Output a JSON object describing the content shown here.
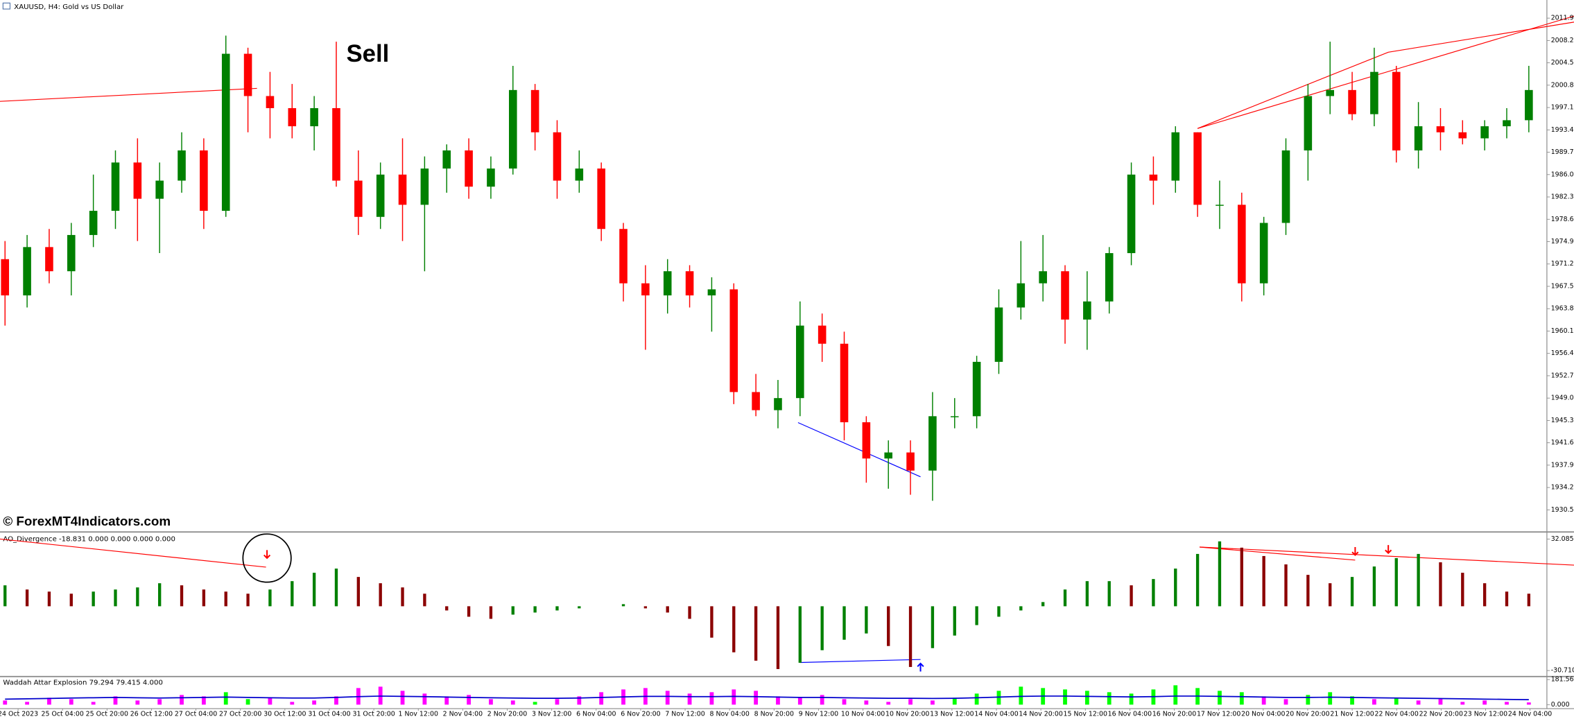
{
  "header": {
    "title": "XAUUSD, H4: Gold vs US Dollar"
  },
  "annotations": {
    "sell": "Sell",
    "watermark": "© ForexMT4Indicators.com"
  },
  "price_chart": {
    "type": "candlestick",
    "ylim": [
      1927.0,
      2014.9
    ],
    "up_color": "#008000",
    "down_color": "#ff0000",
    "yticks": [
      {
        "value": 2011.9,
        "label": "2011.90"
      },
      {
        "value": 2008.2,
        "label": "2008.20"
      },
      {
        "value": 2004.5,
        "label": "2004.50"
      },
      {
        "value": 2000.8,
        "label": "2000.80"
      },
      {
        "value": 1997.1,
        "label": "1997.10"
      },
      {
        "value": 1993.4,
        "label": "1993.40"
      },
      {
        "value": 1989.7,
        "label": "1989.70"
      },
      {
        "value": 1986,
        "label": "1986.00"
      },
      {
        "value": 1982.3,
        "label": "1982.30"
      },
      {
        "value": 1978.6,
        "label": "1978.60"
      },
      {
        "value": 1974.9,
        "label": "1974.90"
      },
      {
        "value": 1971.2,
        "label": "1971.20"
      },
      {
        "value": 1967.5,
        "label": "1967.50"
      },
      {
        "value": 1963.8,
        "label": "1963.80"
      },
      {
        "value": 1960.1,
        "label": "1960.10"
      },
      {
        "value": 1956.4,
        "label": "1956.40"
      },
      {
        "value": 1952.7,
        "label": "1952.70"
      },
      {
        "value": 1949,
        "label": "1949.00"
      },
      {
        "value": 1945.3,
        "label": "1945.30"
      },
      {
        "value": 1941.6,
        "label": "1941.60"
      },
      {
        "value": 1937.9,
        "label": "1937.90"
      },
      {
        "value": 1934.2,
        "label": "1934.20"
      },
      {
        "value": 1930.5,
        "label": "1930.50"
      }
    ],
    "candles": [
      [
        1972,
        1975,
        1961,
        1966
      ],
      [
        1966,
        1976,
        1964,
        1974
      ],
      [
        1974,
        1977,
        1968,
        1970
      ],
      [
        1970,
        1978,
        1966,
        1976
      ],
      [
        1976,
        1986,
        1974,
        1980
      ],
      [
        1980,
        1990,
        1977,
        1988
      ],
      [
        1988,
        1992,
        1975,
        1982
      ],
      [
        1982,
        1988,
        1973,
        1985
      ],
      [
        1985,
        1993,
        1983,
        1990
      ],
      [
        1990,
        1992,
        1977,
        1980
      ],
      [
        1980,
        2009,
        1979,
        2006
      ],
      [
        2006,
        2007,
        1993,
        1999
      ],
      [
        1999,
        2003,
        1992,
        1997
      ],
      [
        1997,
        2001,
        1992,
        1994
      ],
      [
        1994,
        1999,
        1990,
        1997
      ],
      [
        1997,
        2008,
        1984,
        1985
      ],
      [
        1985,
        1990,
        1976,
        1979
      ],
      [
        1979,
        1988,
        1977,
        1986
      ],
      [
        1986,
        1992,
        1975,
        1981
      ],
      [
        1981,
        1989,
        1970,
        1987
      ],
      [
        1987,
        1991,
        1983,
        1990
      ],
      [
        1990,
        1992,
        1982,
        1984
      ],
      [
        1984,
        1989,
        1982,
        1987
      ],
      [
        1987,
        2004,
        1986,
        2000
      ],
      [
        2000,
        2001,
        1990,
        1993
      ],
      [
        1993,
        1995,
        1982,
        1985
      ],
      [
        1985,
        1990,
        1983,
        1987
      ],
      [
        1987,
        1988,
        1975,
        1977
      ],
      [
        1977,
        1978,
        1965,
        1968
      ],
      [
        1968,
        1971,
        1957,
        1966
      ],
      [
        1966,
        1972,
        1963,
        1970
      ],
      [
        1970,
        1971,
        1964,
        1966
      ],
      [
        1966,
        1969,
        1960,
        1967
      ],
      [
        1967,
        1968,
        1948,
        1950
      ],
      [
        1950,
        1953,
        1946,
        1947
      ],
      [
        1947,
        1952,
        1944,
        1949
      ],
      [
        1949,
        1965,
        1946,
        1961
      ],
      [
        1961,
        1963,
        1955,
        1958
      ],
      [
        1958,
        1960,
        1942,
        1945
      ],
      [
        1945,
        1946,
        1935,
        1939
      ],
      [
        1939,
        1942,
        1934,
        1940
      ],
      [
        1940,
        1942,
        1933,
        1937
      ],
      [
        1937,
        1950,
        1932,
        1946
      ],
      [
        1946,
        1949,
        1944,
        1946
      ],
      [
        1946,
        1956,
        1944,
        1955
      ],
      [
        1955,
        1967,
        1953,
        1964
      ],
      [
        1964,
        1975,
        1962,
        1968
      ],
      [
        1968,
        1976,
        1965,
        1970
      ],
      [
        1970,
        1971,
        1958,
        1962
      ],
      [
        1962,
        1970,
        1957,
        1965
      ],
      [
        1965,
        1974,
        1963,
        1973
      ],
      [
        1973,
        1988,
        1971,
        1986
      ],
      [
        1986,
        1989,
        1981,
        1985
      ],
      [
        1985,
        1994,
        1983,
        1993
      ],
      [
        1993,
        1993,
        1979,
        1981
      ],
      [
        1981,
        1985,
        1977,
        1981
      ],
      [
        1981,
        1983,
        1965,
        1968
      ],
      [
        1968,
        1979,
        1966,
        1978
      ],
      [
        1978,
        1992,
        1976,
        1990
      ],
      [
        1990,
        2001,
        1985,
        1999
      ],
      [
        1999,
        2008,
        1996,
        2000
      ],
      [
        2000,
        2003,
        1995,
        1996
      ],
      [
        1996,
        2007,
        1994,
        2003
      ],
      [
        2003,
        2004,
        1988,
        1990
      ],
      [
        1990,
        1998,
        1987,
        1994
      ],
      [
        1994,
        1997,
        1990,
        1993
      ],
      [
        1993,
        1995,
        1991,
        1992
      ],
      [
        1992,
        1995,
        1990,
        1994
      ],
      [
        1994,
        1997,
        1992,
        1995
      ],
      [
        1995,
        2004,
        1993,
        2000
      ]
    ]
  },
  "ao_panel": {
    "type": "histogram",
    "label": "AO_Divergence -18.831 0.000 0.000 0.000 0.000",
    "ylim": [
      -33.1,
      35.0
    ],
    "up_color": "#008000",
    "down_color": "#8b0000",
    "yticks": [
      32.085,
      {
        "value": -30.71,
        "label": "-30.710"
      }
    ],
    "values": [
      10,
      8,
      7,
      6,
      7,
      8,
      9,
      11,
      10,
      8,
      7,
      6,
      8,
      12,
      16,
      18,
      14,
      11,
      9,
      6,
      -2,
      -5,
      -6,
      -4,
      -3,
      -2,
      -1,
      0,
      1,
      -1,
      -3,
      -6,
      -15,
      -22,
      -26,
      -30,
      -27,
      -21,
      -16,
      -13,
      -19,
      -29,
      -20,
      -14,
      -9,
      -5,
      -2,
      2,
      8,
      12,
      12,
      10,
      13,
      18,
      25,
      31,
      28,
      24,
      20,
      15,
      11,
      14,
      19,
      23,
      25,
      21,
      16,
      11,
      7,
      6
    ]
  },
  "wae_panel": {
    "type": "bar",
    "label": "Waddah Attar Explosion 79.294 79.415 4.000",
    "ylim": [
      -29,
      196
    ],
    "line_color": "#0000cc",
    "yticks": [
      181.564,
      {
        "value": 0,
        "label": "0.000"
      }
    ],
    "values": [
      30,
      20,
      50,
      40,
      20,
      60,
      30,
      40,
      70,
      60,
      90,
      40,
      50,
      20,
      30,
      60,
      120,
      130,
      100,
      80,
      60,
      70,
      40,
      30,
      20,
      40,
      60,
      90,
      110,
      120,
      100,
      80,
      90,
      110,
      100,
      60,
      50,
      70,
      40,
      30,
      20,
      40,
      30,
      50,
      80,
      100,
      130,
      120,
      110,
      100,
      90,
      80,
      110,
      140,
      120,
      100,
      90,
      60,
      40,
      70,
      90,
      60,
      40,
      50,
      30,
      40,
      20,
      30,
      20,
      16
    ],
    "colors": [
      "#ff00ff",
      "#ff00ff",
      "#ff00ff",
      "#ff00ff",
      "#ff00ff",
      "#ff00ff",
      "#ff00ff",
      "#ff00ff",
      "#ff00ff",
      "#ff00ff",
      "#00ff00",
      "#00ff00",
      "#ff00ff",
      "#ff00ff",
      "#ff00ff",
      "#ff00ff",
      "#ff00ff",
      "#ff00ff",
      "#ff00ff",
      "#ff00ff",
      "#ff00ff",
      "#ff00ff",
      "#ff00ff",
      "#ff00ff",
      "#00ff00",
      "#ff00ff",
      "#ff00ff",
      "#ff00ff",
      "#ff00ff",
      "#ff00ff",
      "#ff00ff",
      "#ff00ff",
      "#ff00ff",
      "#ff00ff",
      "#ff00ff",
      "#ff00ff",
      "#ff00ff",
      "#ff00ff",
      "#ff00ff",
      "#ff00ff",
      "#ff00ff",
      "#ff00ff",
      "#ff00ff",
      "#00ff00",
      "#00ff00",
      "#00ff00",
      "#00ff00",
      "#00ff00",
      "#00ff00",
      "#00ff00",
      "#00ff00",
      "#00ff00",
      "#00ff00",
      "#00ff00",
      "#00ff00",
      "#00ff00",
      "#00ff00",
      "#ff00ff",
      "#ff00ff",
      "#00ff00",
      "#00ff00",
      "#00ff00",
      "#ff00ff",
      "#00ff00",
      "#ff00ff",
      "#ff00ff",
      "#ff00ff",
      "#ff00ff",
      "#ff00ff",
      "#ff00ff"
    ],
    "line": [
      40,
      42,
      45,
      48,
      50,
      52,
      50,
      48,
      50,
      52,
      55,
      52,
      50,
      48,
      48,
      52,
      58,
      62,
      60,
      58,
      55,
      52,
      50,
      48,
      46,
      46,
      48,
      52,
      56,
      60,
      60,
      58,
      58,
      60,
      58,
      55,
      52,
      52,
      50,
      48,
      46,
      46,
      45,
      46,
      50,
      55,
      60,
      62,
      62,
      60,
      58,
      56,
      58,
      62,
      62,
      60,
      58,
      55,
      52,
      52,
      54,
      52,
      50,
      48,
      46,
      44,
      42,
      40,
      38,
      36
    ]
  },
  "time_axis": {
    "labels": [
      "24 Oct 2023",
      "25 Oct 04:00",
      "25 Oct 20:00",
      "26 Oct 12:00",
      "27 Oct 04:00",
      "27 Oct 20:00",
      "30 Oct 12:00",
      "31 Oct 04:00",
      "31 Oct 20:00",
      "1 Nov 12:00",
      "2 Nov 04:00",
      "2 Nov 20:00",
      "3 Nov 12:00",
      "6 Nov 04:00",
      "6 Nov 20:00",
      "7 Nov 12:00",
      "8 Nov 04:00",
      "8 Nov 20:00",
      "9 Nov 12:00",
      "10 Nov 04:00",
      "10 Nov 20:00",
      "13 Nov 12:00",
      "14 Nov 04:00",
      "14 Nov 20:00",
      "15 Nov 12:00",
      "16 Nov 04:00",
      "16 Nov 20:00",
      "17 Nov 12:00",
      "20 Nov 04:00",
      "20 Nov 20:00",
      "21 Nov 12:00",
      "22 Nov 04:00",
      "22 Nov 20:00",
      "23 Nov 12:00",
      "24 Nov 04:00"
    ]
  }
}
